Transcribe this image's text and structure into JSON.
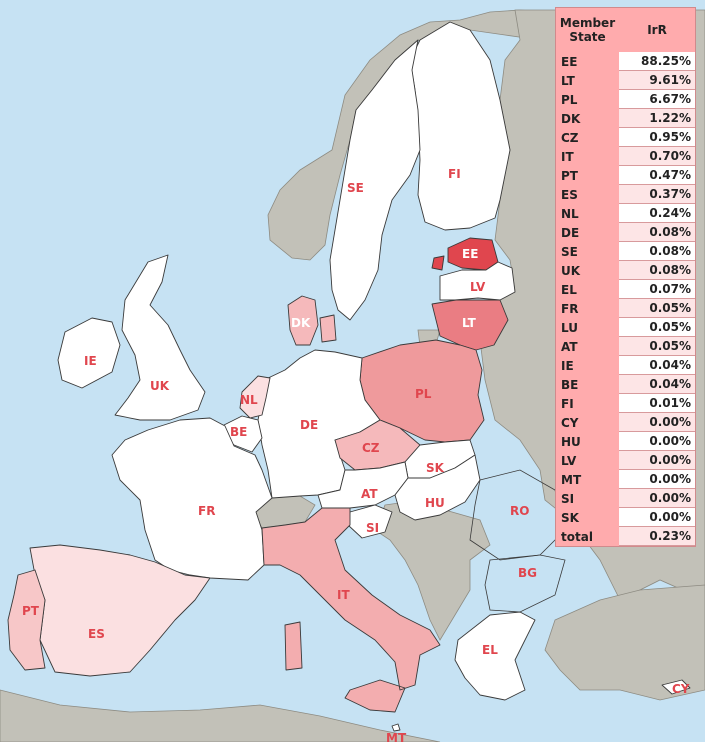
{
  "legend": {
    "header_state": "Member\nState",
    "header_value": "IrR",
    "rows": [
      {
        "code": "EE",
        "value": "88.25%",
        "color": "#ffffff"
      },
      {
        "code": "LT",
        "value": "9.61%",
        "color": "#fde5e6"
      },
      {
        "code": "PL",
        "value": "6.67%",
        "color": "#ffffff"
      },
      {
        "code": "DK",
        "value": "1.22%",
        "color": "#fde5e6"
      },
      {
        "code": "CZ",
        "value": "0.95%",
        "color": "#ffffff"
      },
      {
        "code": "IT",
        "value": "0.70%",
        "color": "#fde5e6"
      },
      {
        "code": "PT",
        "value": "0.47%",
        "color": "#ffffff"
      },
      {
        "code": "ES",
        "value": "0.37%",
        "color": "#fde5e6"
      },
      {
        "code": "NL",
        "value": "0.24%",
        "color": "#ffffff"
      },
      {
        "code": "DE",
        "value": "0.08%",
        "color": "#fde5e6"
      },
      {
        "code": "SE",
        "value": "0.08%",
        "color": "#ffffff"
      },
      {
        "code": "UK",
        "value": "0.08%",
        "color": "#fde5e6"
      },
      {
        "code": "EL",
        "value": "0.07%",
        "color": "#ffffff"
      },
      {
        "code": "FR",
        "value": "0.05%",
        "color": "#fde5e6"
      },
      {
        "code": "LU",
        "value": "0.05%",
        "color": "#ffffff"
      },
      {
        "code": "AT",
        "value": "0.05%",
        "color": "#fde5e6"
      },
      {
        "code": "IE",
        "value": "0.04%",
        "color": "#ffffff"
      },
      {
        "code": "BE",
        "value": "0.04%",
        "color": "#fde5e6"
      },
      {
        "code": "FI",
        "value": "0.01%",
        "color": "#ffffff"
      },
      {
        "code": "CY",
        "value": "0.00%",
        "color": "#fde5e6"
      },
      {
        "code": "HU",
        "value": "0.00%",
        "color": "#ffffff"
      },
      {
        "code": "LV",
        "value": "0.00%",
        "color": "#fde5e6"
      },
      {
        "code": "MT",
        "value": "0.00%",
        "color": "#ffffff"
      },
      {
        "code": "SI",
        "value": "0.00%",
        "color": "#fde5e6"
      },
      {
        "code": "SK",
        "value": "0.00%",
        "color": "#ffffff"
      },
      {
        "code": "total",
        "value": "0.23%",
        "color": "#fde5e6"
      }
    ]
  },
  "map": {
    "sea_color": "#c6e2f3",
    "non_eu_color": "#c2c1b8",
    "countries": {
      "ee": {
        "label": "EE",
        "color": "#e0464e"
      },
      "lt": {
        "label": "LT",
        "color": "#ea7d83"
      },
      "pl": {
        "label": "PL",
        "color": "#ef9a9c"
      },
      "dk": {
        "label": "DK",
        "color": "#f5b9bb"
      },
      "cz": {
        "label": "CZ",
        "color": "#f5b9bb"
      },
      "it": {
        "label": "IT",
        "color": "#f3adaf"
      },
      "pt": {
        "label": "PT",
        "color": "#f7c7c8"
      },
      "es": {
        "label": "ES",
        "color": "#fbe0e1"
      },
      "nl": {
        "label": "NL",
        "color": "#fbe0e1"
      },
      "de": {
        "label": "DE",
        "color": "#ffffff"
      },
      "se": {
        "label": "SE",
        "color": "#ffffff"
      },
      "uk": {
        "label": "UK",
        "color": "#ffffff"
      },
      "el": {
        "label": "EL",
        "color": "#ffffff"
      },
      "fr": {
        "label": "FR",
        "color": "#ffffff"
      },
      "at": {
        "label": "AT",
        "color": "#ffffff"
      },
      "ie": {
        "label": "IE",
        "color": "#ffffff"
      },
      "be": {
        "label": "BE",
        "color": "#ffffff"
      },
      "fi": {
        "label": "FI",
        "color": "#ffffff"
      },
      "cy": {
        "label": "CY",
        "color": "#ffffff"
      },
      "hu": {
        "label": "HU",
        "color": "#ffffff"
      },
      "lv": {
        "label": "LV",
        "color": "#ffffff"
      },
      "mt": {
        "label": "MT",
        "color": "#ffffff"
      },
      "si": {
        "label": "SI",
        "color": "#ffffff"
      },
      "sk": {
        "label": "SK",
        "color": "#ffffff"
      },
      "ro": {
        "label": "RO",
        "color": "#c2c1b8"
      },
      "bg": {
        "label": "BG",
        "color": "#c2c1b8"
      }
    }
  }
}
